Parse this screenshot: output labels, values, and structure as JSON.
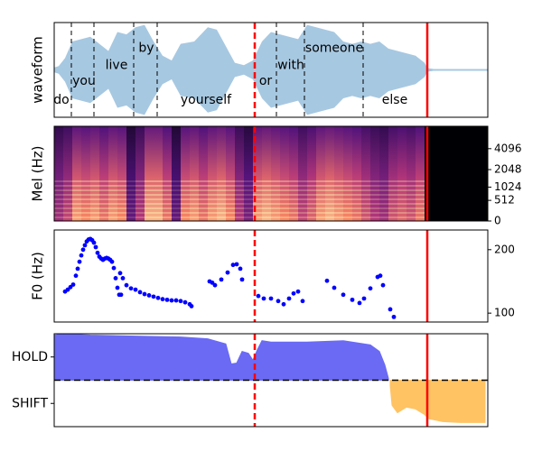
{
  "chart_data": [
    {
      "type": "area",
      "mirror": true,
      "ylabel": "waveform",
      "color": "#a7c8e1",
      "xlim": [
        0,
        4.8
      ],
      "ylim": [
        -1,
        1
      ],
      "x": [
        0.0,
        0.05,
        0.12,
        0.2,
        0.3,
        0.4,
        0.5,
        0.6,
        0.7,
        0.8,
        0.9,
        1.0,
        1.1,
        1.2,
        1.3,
        1.4,
        1.55,
        1.7,
        1.8,
        1.9,
        2.0,
        2.1,
        2.2,
        2.3,
        2.4,
        2.5,
        2.6,
        2.7,
        2.8,
        2.9,
        3.0,
        3.1,
        3.2,
        3.3,
        3.4,
        3.5,
        3.6,
        3.7,
        3.8,
        3.9,
        4.0,
        4.1,
        4.13,
        4.2,
        4.5,
        4.8
      ],
      "values": [
        0.05,
        0.08,
        0.25,
        0.6,
        0.65,
        0.7,
        0.55,
        0.4,
        0.8,
        0.75,
        0.9,
        0.95,
        0.6,
        0.3,
        0.2,
        0.55,
        0.6,
        0.9,
        0.85,
        0.5,
        0.15,
        0.1,
        0.2,
        0.6,
        0.8,
        0.75,
        0.7,
        0.65,
        0.95,
        0.9,
        0.85,
        0.8,
        0.6,
        0.55,
        0.6,
        0.55,
        0.6,
        0.45,
        0.4,
        0.35,
        0.3,
        0.15,
        0.04,
        0.02,
        0.02,
        0.02
      ],
      "word_boundaries": [
        0.19,
        0.44,
        0.88,
        1.14,
        2.46,
        2.77,
        3.42
      ],
      "words": [
        {
          "text": "do",
          "x": 0.08
        },
        {
          "text": "you",
          "x": 0.33
        },
        {
          "text": "live",
          "x": 0.69
        },
        {
          "text": "by",
          "x": 1.02
        },
        {
          "text": "yourself",
          "x": 1.68
        },
        {
          "text": "or",
          "x": 2.34
        },
        {
          "text": "with",
          "x": 2.62
        },
        {
          "text": "someone",
          "x": 3.1
        },
        {
          "text": "else",
          "x": 3.77
        }
      ],
      "vlines": [
        {
          "x": 2.22,
          "color": "#ff0000",
          "style": "dashed"
        },
        {
          "x": 4.13,
          "color": "#ff0000",
          "style": "solid"
        }
      ]
    },
    {
      "type": "heatmap",
      "ylabel": "Mel (Hz)",
      "yscale": "mel",
      "yaxis_side": "right",
      "xlim": [
        0,
        4.8
      ],
      "ylim": [
        0,
        8000
      ],
      "yticks": [
        0,
        512,
        1024,
        2048,
        4096
      ],
      "x": [
        0.05,
        0.15,
        0.25,
        0.35,
        0.45,
        0.55,
        0.65,
        0.75,
        0.85,
        0.95,
        1.05,
        1.15,
        1.25,
        1.35,
        1.45,
        1.55,
        1.65,
        1.75,
        1.85,
        1.95,
        2.05,
        2.15,
        2.25,
        2.35,
        2.45,
        2.55,
        2.65,
        2.75,
        2.85,
        2.95,
        3.05,
        3.15,
        3.25,
        3.35,
        3.45,
        3.55,
        3.65,
        3.75,
        3.85,
        3.95,
        4.05,
        4.15,
        4.25,
        4.35,
        4.45,
        4.55,
        4.65,
        4.75
      ],
      "values": [
        0.45,
        0.55,
        0.8,
        0.75,
        0.8,
        0.7,
        0.8,
        0.75,
        0.3,
        0.5,
        0.85,
        0.85,
        0.7,
        0.3,
        0.75,
        0.8,
        0.7,
        0.8,
        0.85,
        0.75,
        0.5,
        0.35,
        0.8,
        0.85,
        0.8,
        0.75,
        0.7,
        0.55,
        0.65,
        0.8,
        0.85,
        0.8,
        0.75,
        0.7,
        0.6,
        0.5,
        0.45,
        0.6,
        0.65,
        0.6,
        0.7,
        0.0,
        0.0,
        0.0,
        0.0,
        0.0,
        0.0,
        0.0
      ],
      "vlines": [
        {
          "x": 2.22,
          "color": "#ff0000",
          "style": "dashed"
        },
        {
          "x": 4.13,
          "color": "#ff0000",
          "style": "solid"
        }
      ]
    },
    {
      "type": "scatter",
      "ylabel": "F0 (Hz)",
      "yaxis_side": "right",
      "color": "#0000ff",
      "xlim": [
        0,
        4.8
      ],
      "ylim": [
        86,
        231
      ],
      "yticks": [
        100,
        200
      ],
      "x": [
        0.12,
        0.15,
        0.18,
        0.21,
        0.24,
        0.26,
        0.28,
        0.3,
        0.32,
        0.34,
        0.36,
        0.38,
        0.4,
        0.42,
        0.44,
        0.46,
        0.48,
        0.5,
        0.52,
        0.54,
        0.56,
        0.58,
        0.6,
        0.62,
        0.64,
        0.66,
        0.68,
        0.7,
        0.72,
        0.74,
        0.73,
        0.76,
        0.8,
        0.85,
        0.9,
        0.95,
        1.0,
        1.05,
        1.1,
        1.15,
        1.2,
        1.25,
        1.3,
        1.35,
        1.4,
        1.45,
        1.5,
        1.52,
        1.72,
        1.75,
        1.78,
        1.85,
        1.92,
        1.98,
        2.02,
        2.06,
        2.08,
        2.26,
        2.32,
        2.4,
        2.48,
        2.54,
        2.6,
        2.65,
        2.7,
        2.75,
        3.02,
        3.1,
        3.2,
        3.3,
        3.38,
        3.43,
        3.5,
        3.58,
        3.61,
        3.64,
        3.72,
        3.76
      ],
      "values": [
        134,
        137,
        141,
        145,
        159,
        170,
        181,
        191,
        200,
        207,
        213,
        216,
        217,
        215,
        211,
        204,
        195,
        189,
        186,
        184,
        186,
        187,
        186,
        184,
        181,
        171,
        155,
        140,
        129,
        129,
        163,
        155,
        144,
        139,
        137,
        133,
        130,
        128,
        126,
        124,
        122,
        121,
        120,
        120,
        119,
        117,
        114,
        111,
        150,
        148,
        144,
        153,
        164,
        176,
        177,
        170,
        153,
        127,
        123,
        123,
        119,
        114,
        123,
        131,
        134,
        119,
        151,
        140,
        129,
        121,
        116,
        123,
        139,
        157,
        159,
        144,
        106,
        94
      ],
      "vlines": [
        {
          "x": 2.22,
          "color": "#ff0000",
          "style": "dashed"
        },
        {
          "x": 4.13,
          "color": "#ff0000",
          "style": "solid"
        }
      ]
    },
    {
      "type": "area",
      "yaxis_side": "left",
      "xlim": [
        0,
        4.8
      ],
      "ylim": [
        -1,
        1
      ],
      "yticks": [
        {
          "value": 0.5,
          "label": "HOLD"
        },
        {
          "value": -0.5,
          "label": "SHIFT"
        }
      ],
      "series": [
        {
          "color": "#6a6af5",
          "x": [
            0.0,
            0.1,
            0.4,
            0.9,
            1.4,
            1.7,
            1.9,
            1.96,
            2.02,
            2.08,
            2.15,
            2.2,
            2.25,
            2.3,
            2.4,
            2.8,
            3.2,
            3.5,
            3.6,
            3.66,
            3.7
          ],
          "values": [
            0.97,
            1.0,
            0.97,
            0.95,
            0.93,
            0.89,
            0.78,
            0.35,
            0.37,
            0.62,
            0.58,
            0.43,
            0.66,
            0.85,
            0.82,
            0.82,
            0.85,
            0.76,
            0.62,
            0.33,
            0.04
          ]
        },
        {
          "color": "#ffc364",
          "x": [
            3.72,
            3.74,
            3.8,
            3.9,
            4.0,
            4.1,
            4.15,
            4.2,
            4.3,
            4.5,
            4.77
          ],
          "values": [
            -0.12,
            -0.54,
            -0.7,
            -0.58,
            -0.62,
            -0.74,
            -0.83,
            -0.85,
            -0.89,
            -0.91,
            -0.91
          ]
        }
      ],
      "hline": {
        "y": 0,
        "color": "#000000",
        "style": "dashed"
      },
      "vlines": [
        {
          "x": 2.22,
          "color": "#ff0000",
          "style": "dashed"
        },
        {
          "x": 4.13,
          "color": "#ff0000",
          "style": "solid"
        }
      ]
    }
  ]
}
